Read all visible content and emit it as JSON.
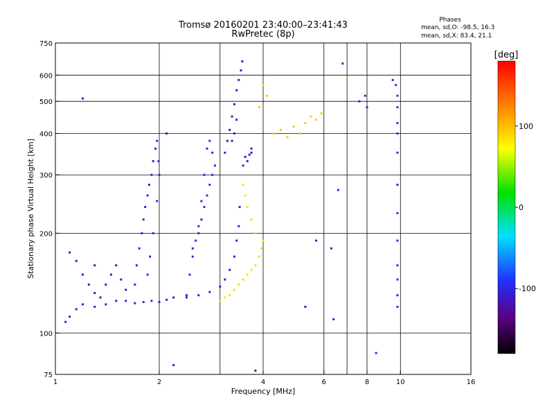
{
  "title_line1": "Tromsø 20160201 23:40:00–23:41:43",
  "title_line2": "RwPretec (8p)",
  "phases": {
    "label": "Phases",
    "line_o": "mean, sd,O: -98.5, 16.3",
    "line_x": "mean, sd,X:  83.4, 21.1"
  },
  "colorbar": {
    "label": "[deg]",
    "ticks": [
      {
        "value": 100,
        "label": "100"
      },
      {
        "value": 0,
        "label": "0"
      },
      {
        "value": -100,
        "label": "-100"
      }
    ],
    "range": [
      -180,
      180
    ]
  },
  "chart_data": {
    "type": "scatter",
    "xlabel": "Frequency [MHz]",
    "ylabel": "Stationary phase Virtual Height [km]",
    "x_scale": "log2",
    "y_scale": "log",
    "xlim": [
      1,
      16
    ],
    "ylim": [
      75,
      750
    ],
    "x_ticks": [
      {
        "value": 1,
        "label": "1"
      },
      {
        "value": 2,
        "label": "2"
      },
      {
        "value": 4,
        "label": "4"
      },
      {
        "value": 6,
        "label": "6"
      },
      {
        "value": 8,
        "label": "8"
      },
      {
        "value": 10,
        "label": "10"
      },
      {
        "value": 16,
        "label": "16"
      }
    ],
    "x_grid": [
      2,
      3,
      4,
      6,
      7,
      8,
      10
    ],
    "y_ticks": [
      {
        "value": 75,
        "label": "75"
      },
      {
        "value": 100,
        "label": "100"
      },
      {
        "value": 200,
        "label": "200"
      },
      {
        "value": 300,
        "label": "300"
      },
      {
        "value": 400,
        "label": "400"
      },
      {
        "value": 500,
        "label": "500"
      },
      {
        "value": 600,
        "label": "600"
      },
      {
        "value": 750,
        "label": "750"
      }
    ],
    "y_grid": [
      100,
      200,
      300,
      400,
      500,
      600
    ],
    "grid": true,
    "color_value": "phase (deg)",
    "trace_groups": [
      {
        "description": "O-mode E/F1 trace",
        "phase": -105,
        "points": [
          [
            1.07,
            108
          ],
          [
            1.1,
            112
          ],
          [
            1.15,
            118
          ],
          [
            1.2,
            122
          ],
          [
            1.3,
            120
          ],
          [
            1.4,
            122
          ],
          [
            1.5,
            125
          ],
          [
            1.6,
            125
          ],
          [
            1.7,
            123
          ],
          [
            1.8,
            124
          ],
          [
            1.9,
            125
          ],
          [
            2.0,
            124
          ],
          [
            2.1,
            126
          ],
          [
            2.2,
            128
          ],
          [
            2.4,
            128
          ],
          [
            2.6,
            130
          ],
          [
            2.8,
            133
          ],
          [
            3.0,
            138
          ],
          [
            3.1,
            145
          ],
          [
            3.2,
            155
          ],
          [
            3.3,
            170
          ],
          [
            3.35,
            190
          ],
          [
            3.4,
            210
          ],
          [
            3.42,
            240
          ]
        ]
      },
      {
        "description": "O-mode trace lower branch",
        "phase": -110,
        "points": [
          [
            1.1,
            175
          ],
          [
            1.15,
            165
          ],
          [
            1.2,
            150
          ],
          [
            1.25,
            140
          ],
          [
            1.3,
            132
          ],
          [
            1.35,
            128
          ],
          [
            1.4,
            140
          ],
          [
            1.45,
            150
          ],
          [
            1.5,
            160
          ],
          [
            1.55,
            145
          ],
          [
            1.6,
            135
          ]
        ]
      },
      {
        "description": "O-mode band 1.7-2.0 MHz",
        "phase": -100,
        "points": [
          [
            1.7,
            140
          ],
          [
            1.72,
            160
          ],
          [
            1.75,
            180
          ],
          [
            1.78,
            200
          ],
          [
            1.8,
            220
          ],
          [
            1.82,
            240
          ],
          [
            1.85,
            260
          ],
          [
            1.87,
            280
          ],
          [
            1.9,
            300
          ],
          [
            1.92,
            330
          ],
          [
            1.95,
            360
          ],
          [
            1.97,
            380
          ],
          [
            1.99,
            330
          ],
          [
            2.0,
            300
          ],
          [
            1.97,
            250
          ],
          [
            1.92,
            200
          ],
          [
            1.88,
            170
          ],
          [
            1.85,
            150
          ]
        ]
      },
      {
        "description": "O-mode band 2.4-2.9 MHz",
        "phase": -95,
        "points": [
          [
            2.4,
            130
          ],
          [
            2.45,
            150
          ],
          [
            2.5,
            170
          ],
          [
            2.55,
            190
          ],
          [
            2.6,
            200
          ],
          [
            2.65,
            220
          ],
          [
            2.7,
            240
          ],
          [
            2.75,
            260
          ],
          [
            2.8,
            280
          ],
          [
            2.85,
            300
          ],
          [
            2.9,
            320
          ],
          [
            2.85,
            350
          ],
          [
            2.8,
            380
          ],
          [
            2.75,
            360
          ],
          [
            2.7,
            300
          ],
          [
            2.65,
            250
          ],
          [
            2.6,
            210
          ],
          [
            2.5,
            180
          ]
        ]
      },
      {
        "description": "O-mode F2 cusp",
        "phase": -110,
        "points": [
          [
            3.1,
            350
          ],
          [
            3.15,
            380
          ],
          [
            3.2,
            410
          ],
          [
            3.25,
            450
          ],
          [
            3.3,
            490
          ],
          [
            3.35,
            540
          ],
          [
            3.4,
            580
          ],
          [
            3.45,
            620
          ],
          [
            3.48,
            660
          ],
          [
            3.35,
            440
          ],
          [
            3.3,
            400
          ],
          [
            3.25,
            380
          ]
        ]
      },
      {
        "description": "O-mode 3.4-3.7 MHz",
        "phase": -105,
        "points": [
          [
            3.5,
            320
          ],
          [
            3.55,
            340
          ],
          [
            3.6,
            330
          ],
          [
            3.65,
            345
          ],
          [
            3.7,
            350
          ],
          [
            3.7,
            360
          ]
        ]
      },
      {
        "description": "X-mode trace",
        "phase": 85,
        "points": [
          [
            3.0,
            125
          ],
          [
            3.1,
            128
          ],
          [
            3.2,
            130
          ],
          [
            3.3,
            135
          ],
          [
            3.4,
            140
          ],
          [
            3.5,
            145
          ],
          [
            3.6,
            150
          ],
          [
            3.7,
            155
          ],
          [
            3.8,
            160
          ],
          [
            3.9,
            170
          ],
          [
            3.95,
            180
          ],
          [
            4.0,
            190
          ],
          [
            3.8,
            200
          ],
          [
            3.7,
            220
          ],
          [
            3.6,
            240
          ],
          [
            3.55,
            260
          ],
          [
            3.5,
            280
          ]
        ]
      },
      {
        "description": "X-mode spread F2",
        "phase": 95,
        "points": [
          [
            4.3,
            400
          ],
          [
            4.5,
            410
          ],
          [
            4.7,
            390
          ],
          [
            4.9,
            420
          ],
          [
            5.1,
            400
          ],
          [
            5.3,
            430
          ],
          [
            5.5,
            450
          ],
          [
            5.7,
            440
          ],
          [
            5.9,
            460
          ],
          [
            3.9,
            480
          ],
          [
            4.0,
            560
          ],
          [
            4.1,
            520
          ]
        ]
      },
      {
        "description": "Sparse high-frequency echoes",
        "phase": -100,
        "points": [
          [
            6.4,
            110
          ],
          [
            6.6,
            270
          ],
          [
            6.8,
            650
          ],
          [
            7.6,
            500
          ],
          [
            7.9,
            520
          ],
          [
            8.0,
            480
          ],
          [
            8.5,
            87
          ],
          [
            9.5,
            580
          ],
          [
            9.7,
            560
          ],
          [
            9.8,
            520
          ],
          [
            9.8,
            480
          ],
          [
            9.8,
            430
          ],
          [
            9.8,
            400
          ],
          [
            9.8,
            350
          ],
          [
            9.8,
            280
          ],
          [
            9.8,
            230
          ],
          [
            9.8,
            190
          ],
          [
            9.8,
            160
          ],
          [
            9.8,
            145
          ],
          [
            9.8,
            130
          ],
          [
            9.8,
            120
          ]
        ]
      },
      {
        "description": "Isolated low-frequency echoes",
        "phase": -120,
        "points": [
          [
            1.2,
            510
          ],
          [
            2.2,
            80
          ],
          [
            3.8,
            77
          ],
          [
            5.3,
            120
          ],
          [
            5.7,
            190
          ],
          [
            6.3,
            180
          ],
          [
            2.1,
            400
          ],
          [
            1.3,
            160
          ]
        ]
      }
    ]
  }
}
